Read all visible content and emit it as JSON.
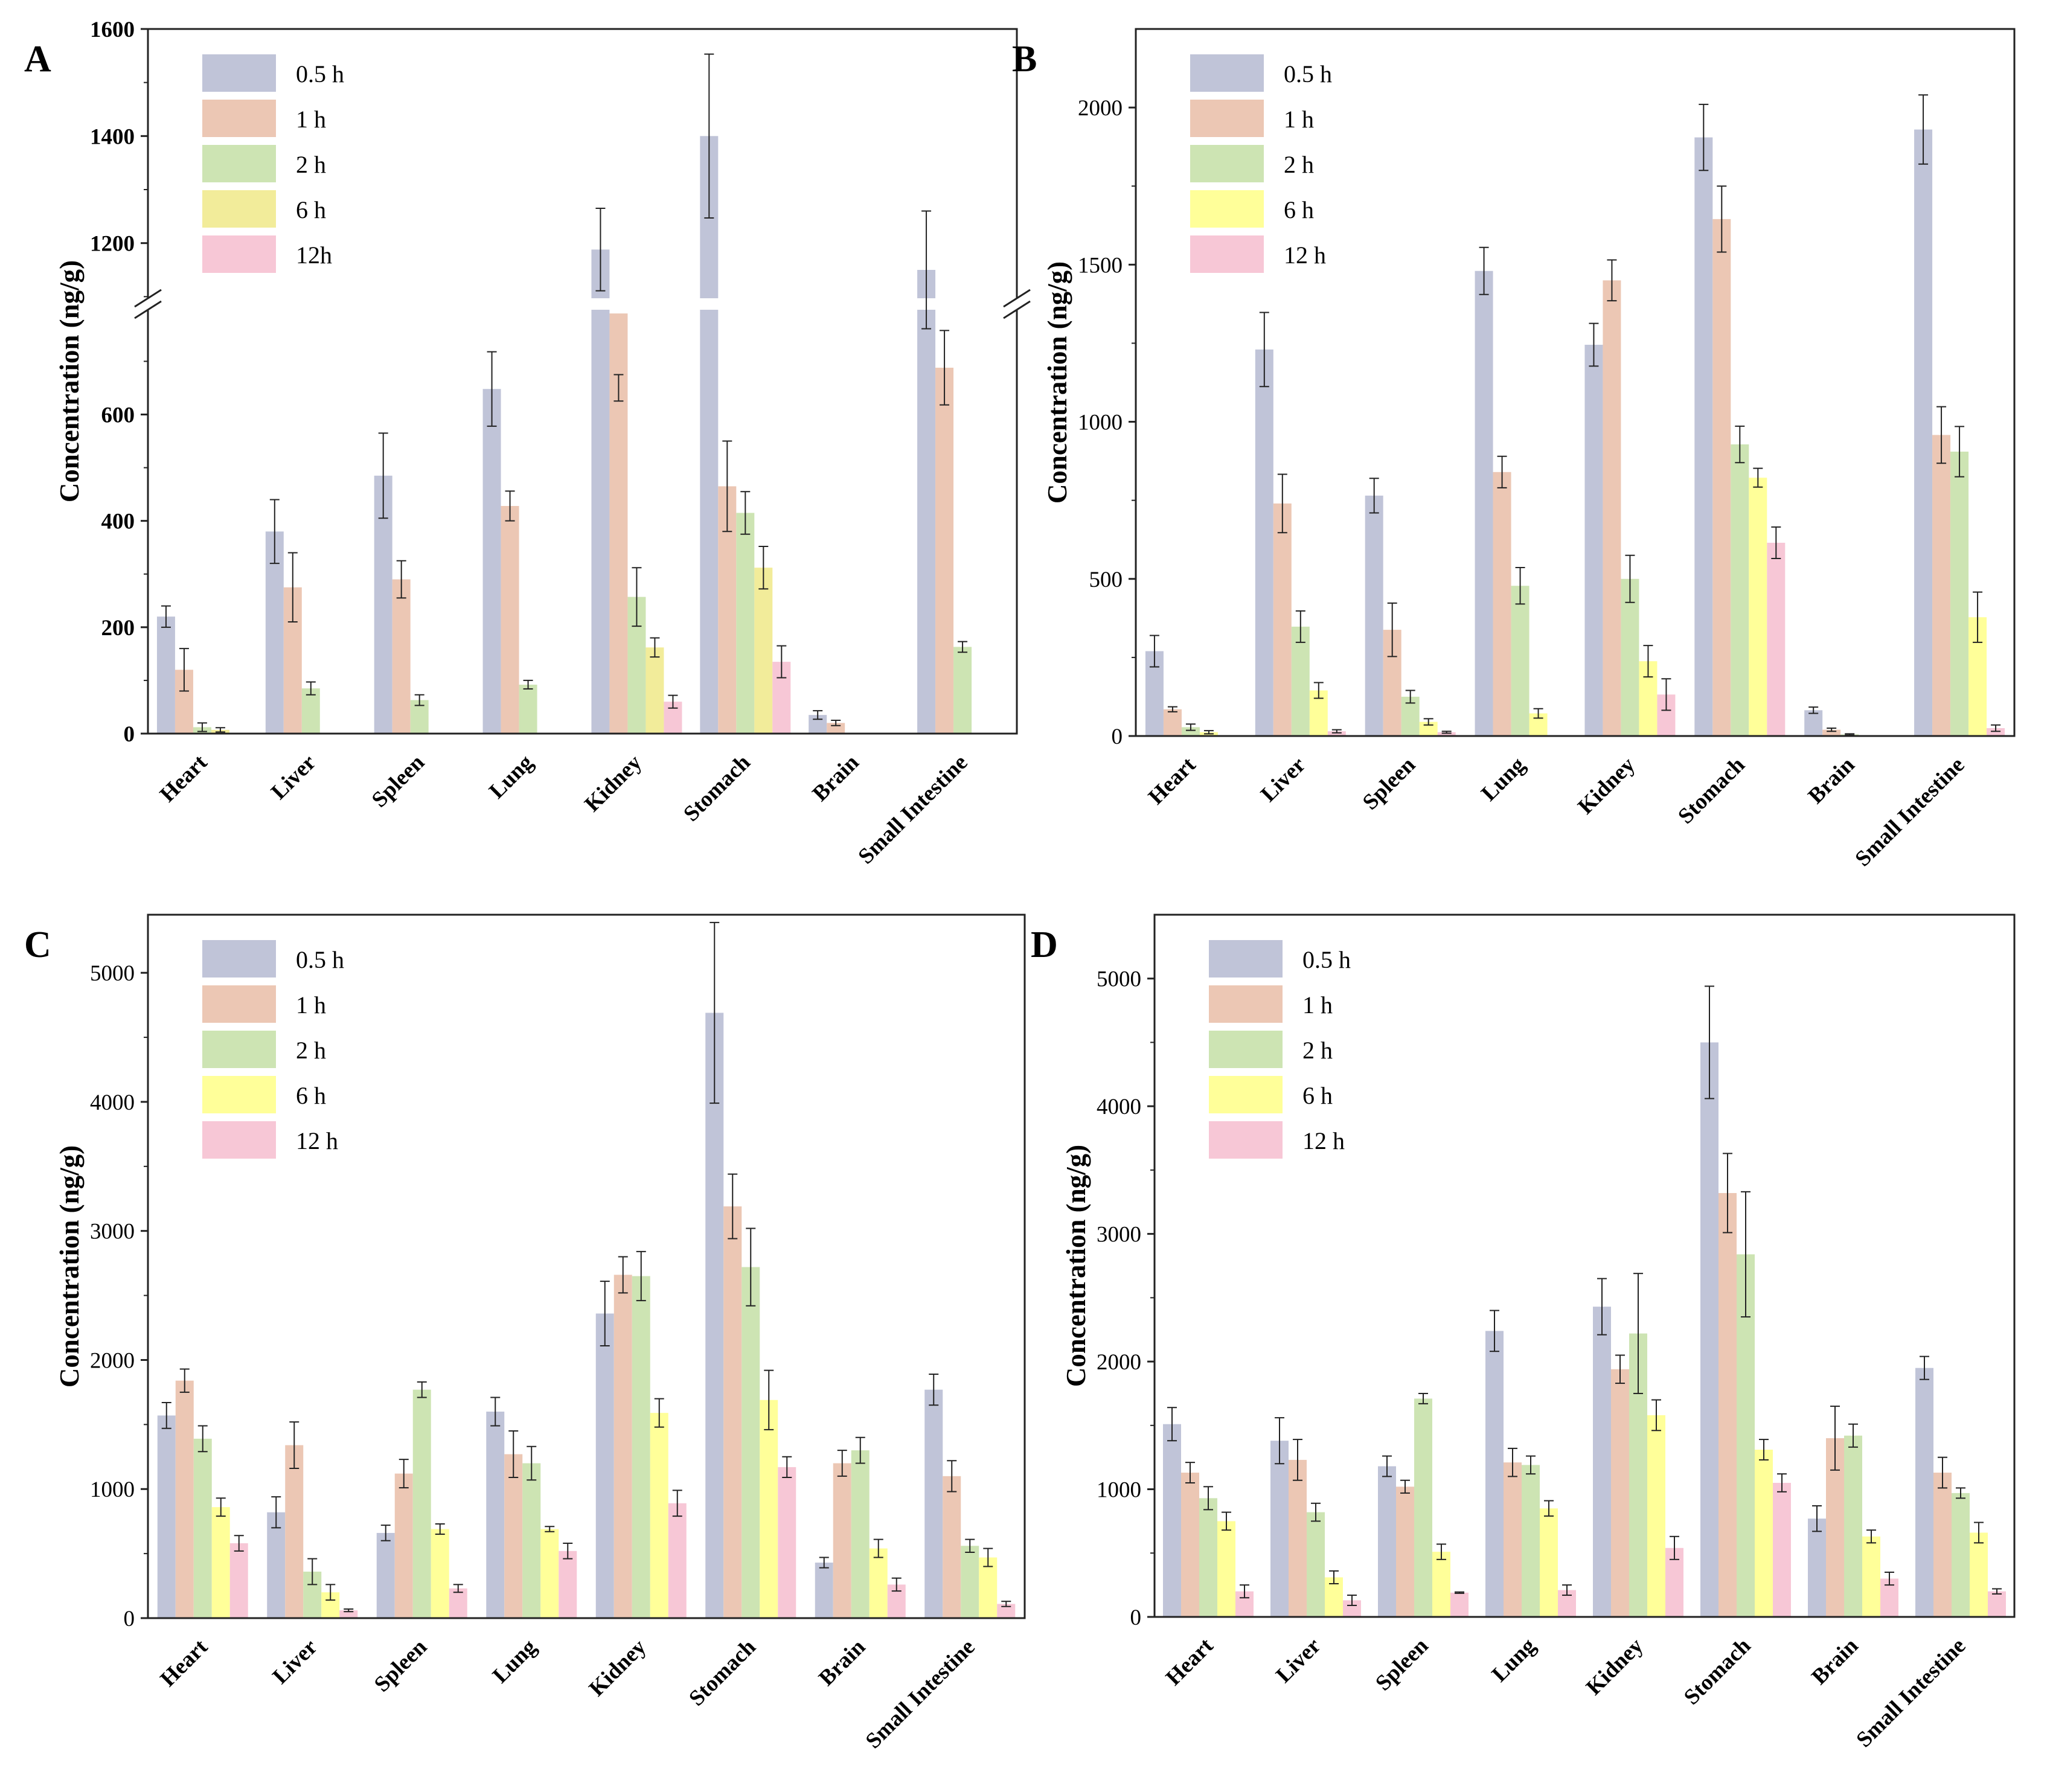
{
  "colors": {
    "0.5 h": "#c0c4d8",
    "1 h": "#ecc7b4",
    "2 h": "#cde4b3",
    "6 h": "#ffff99",
    "6 h A": "#f2ec9a",
    "12 h": "#f7c7d6",
    "error": "#222222"
  },
  "chart_data": [
    {
      "panel_label": "A",
      "type": "bar",
      "ylabel": "Concentration (ng/g)",
      "categories": [
        "Heart",
        "Liver",
        "Spleen",
        "Lung",
        "Kidney",
        "Stomach",
        "Brain",
        "Small Intestine"
      ],
      "ylim": [
        0,
        1600
      ],
      "axis_break": [
        797,
        1097
      ],
      "yticks": [
        0,
        200,
        400,
        600,
        1200,
        1400,
        1600
      ],
      "legend_position": "top-left",
      "series": [
        {
          "name": "0.5 h",
          "values": [
            220,
            380,
            485,
            648,
            1188,
            1400,
            35,
            1150
          ],
          "errors": [
            20,
            60,
            80,
            70,
            77,
            153,
            8,
            110
          ]
        },
        {
          "name": "1 h",
          "values": [
            120,
            275,
            290,
            428,
            790,
            465,
            20,
            688
          ],
          "errors": [
            40,
            65,
            35,
            28,
            115,
            85,
            5,
            70
          ]
        },
        {
          "name": "2 h",
          "values": [
            12,
            85,
            63,
            92,
            257,
            415,
            null,
            163
          ],
          "errors": [
            8,
            12,
            10,
            8,
            55,
            40,
            null,
            10
          ]
        },
        {
          "name": "6 h",
          "values": [
            7,
            null,
            null,
            null,
            162,
            312,
            null,
            null
          ],
          "errors": [
            4,
            null,
            null,
            null,
            18,
            40,
            null,
            null
          ]
        },
        {
          "name": "12h",
          "values": [
            null,
            null,
            null,
            null,
            60,
            135,
            null,
            null
          ],
          "errors": [
            null,
            null,
            null,
            null,
            12,
            30,
            null,
            null
          ]
        }
      ]
    },
    {
      "panel_label": "B",
      "type": "bar",
      "ylabel": "Concentration (ng/g)",
      "categories": [
        "Heart",
        "Liver",
        "Spleen",
        "Lung",
        "Kidney",
        "Stomach",
        "Brain",
        "Small Intestine"
      ],
      "ylim": [
        0,
        2250
      ],
      "yticks": [
        0,
        500,
        1000,
        1500,
        2000
      ],
      "legend_position": "top-left",
      "series": [
        {
          "name": "0.5 h",
          "values": [
            270,
            1230,
            765,
            1480,
            1245,
            1905,
            82,
            1930
          ],
          "errors": [
            50,
            118,
            55,
            75,
            68,
            105,
            10,
            110
          ]
        },
        {
          "name": "1 h",
          "values": [
            85,
            740,
            338,
            840,
            1450,
            1645,
            20,
            958
          ],
          "errors": [
            8,
            93,
            85,
            50,
            65,
            105,
            5,
            90
          ]
        },
        {
          "name": "2 h",
          "values": [
            28,
            348,
            125,
            478,
            500,
            928,
            5,
            905
          ],
          "errors": [
            10,
            50,
            20,
            58,
            75,
            58,
            2,
            80
          ]
        },
        {
          "name": "6 h",
          "values": [
            12,
            145,
            45,
            72,
            238,
            822,
            null,
            378
          ],
          "errors": [
            5,
            25,
            10,
            15,
            50,
            30,
            null,
            80
          ]
        },
        {
          "name": "12 h",
          "values": [
            null,
            15,
            12,
            null,
            132,
            615,
            null,
            25
          ],
          "errors": [
            null,
            5,
            3,
            null,
            50,
            50,
            null,
            10
          ]
        }
      ]
    },
    {
      "panel_label": "C",
      "type": "bar",
      "ylabel": "Concentration (ng/g)",
      "categories": [
        "Heart",
        "Liver",
        "Spleen",
        "Lung",
        "Kidney",
        "Stomach",
        "Brain",
        "Small Intestine"
      ],
      "ylim": [
        0,
        5450
      ],
      "yticks": [
        0,
        1000,
        2000,
        3000,
        4000,
        5000
      ],
      "legend_position": "top-left",
      "series": [
        {
          "name": "0.5 h",
          "values": [
            1570,
            820,
            660,
            1600,
            2360,
            4690,
            430,
            1770
          ],
          "errors": [
            100,
            120,
            60,
            110,
            250,
            700,
            40,
            120
          ]
        },
        {
          "name": "1 h",
          "values": [
            1840,
            1340,
            1120,
            1270,
            2660,
            3190,
            1200,
            1100
          ],
          "errors": [
            90,
            180,
            110,
            180,
            140,
            250,
            100,
            120
          ]
        },
        {
          "name": "2 h",
          "values": [
            1390,
            360,
            1770,
            1200,
            2650,
            2720,
            1300,
            560
          ],
          "errors": [
            100,
            100,
            60,
            130,
            190,
            300,
            100,
            50
          ]
        },
        {
          "name": "6 h",
          "values": [
            860,
            200,
            690,
            690,
            1590,
            1690,
            540,
            470
          ],
          "errors": [
            70,
            60,
            40,
            20,
            110,
            230,
            70,
            70
          ]
        },
        {
          "name": "12 h",
          "values": [
            580,
            60,
            230,
            520,
            890,
            1170,
            260,
            110
          ],
          "errors": [
            60,
            10,
            30,
            60,
            100,
            80,
            50,
            20
          ]
        }
      ]
    },
    {
      "panel_label": "D",
      "type": "bar",
      "ylabel": "Concentration (ng/g)",
      "categories": [
        "Heart",
        "Liver",
        "Spleen",
        "Lung",
        "Kidney",
        "Stomach",
        "Brain",
        "Small Intestine"
      ],
      "ylim": [
        0,
        5500
      ],
      "yticks": [
        0,
        1000,
        2000,
        3000,
        4000,
        5000
      ],
      "legend_position": "top-left",
      "series": [
        {
          "name": "0.5 h",
          "values": [
            1510,
            1380,
            1180,
            2240,
            2430,
            4500,
            770,
            1950
          ],
          "errors": [
            130,
            180,
            80,
            160,
            220,
            440,
            100,
            90
          ]
        },
        {
          "name": "1 h",
          "values": [
            1130,
            1230,
            1020,
            1210,
            1940,
            3320,
            1400,
            1130
          ],
          "errors": [
            80,
            160,
            50,
            110,
            110,
            310,
            250,
            120
          ]
        },
        {
          "name": "2 h",
          "values": [
            930,
            820,
            1710,
            1190,
            2220,
            2840,
            1420,
            970
          ],
          "errors": [
            90,
            70,
            40,
            70,
            470,
            490,
            90,
            40
          ]
        },
        {
          "name": "6 h",
          "values": [
            750,
            310,
            510,
            850,
            1580,
            1310,
            630,
            660
          ],
          "errors": [
            70,
            50,
            60,
            60,
            120,
            80,
            50,
            80
          ]
        },
        {
          "name": "12 h",
          "values": [
            200,
            130,
            190,
            210,
            540,
            1050,
            300,
            200
          ],
          "errors": [
            50,
            40,
            5,
            40,
            90,
            70,
            50,
            20
          ]
        }
      ]
    }
  ]
}
